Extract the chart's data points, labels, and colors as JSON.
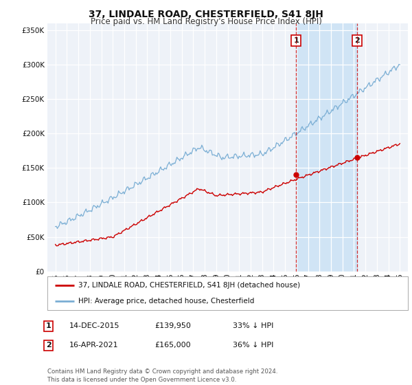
{
  "title": "37, LINDALE ROAD, CHESTERFIELD, S41 8JH",
  "subtitle": "Price paid vs. HM Land Registry's House Price Index (HPI)",
  "title_fontsize": 10,
  "subtitle_fontsize": 8.5,
  "background_color": "#ffffff",
  "plot_bg_color": "#eef2f8",
  "grid_color": "#ffffff",
  "hpi_color": "#7aaed4",
  "property_color": "#cc0000",
  "shade_color": "#d0e4f5",
  "ylim": [
    0,
    360000
  ],
  "yticks": [
    0,
    50000,
    100000,
    150000,
    200000,
    250000,
    300000,
    350000
  ],
  "ytick_labels": [
    "£0",
    "£50K",
    "£100K",
    "£150K",
    "£200K",
    "£250K",
    "£300K",
    "£350K"
  ],
  "xlim_left": 1994.3,
  "xlim_right": 2025.7,
  "sale1_x": 2015.96,
  "sale1_y": 139950,
  "sale1_label": "1",
  "sale2_x": 2021.29,
  "sale2_y": 165000,
  "sale2_label": "2",
  "legend_property": "37, LINDALE ROAD, CHESTERFIELD, S41 8JH (detached house)",
  "legend_hpi": "HPI: Average price, detached house, Chesterfield",
  "table_row1": [
    "1",
    "14-DEC-2015",
    "£139,950",
    "33% ↓ HPI"
  ],
  "table_row2": [
    "2",
    "16-APR-2021",
    "£165,000",
    "36% ↓ HPI"
  ],
  "footnote": "Contains HM Land Registry data © Crown copyright and database right 2024.\nThis data is licensed under the Open Government Licence v3.0."
}
